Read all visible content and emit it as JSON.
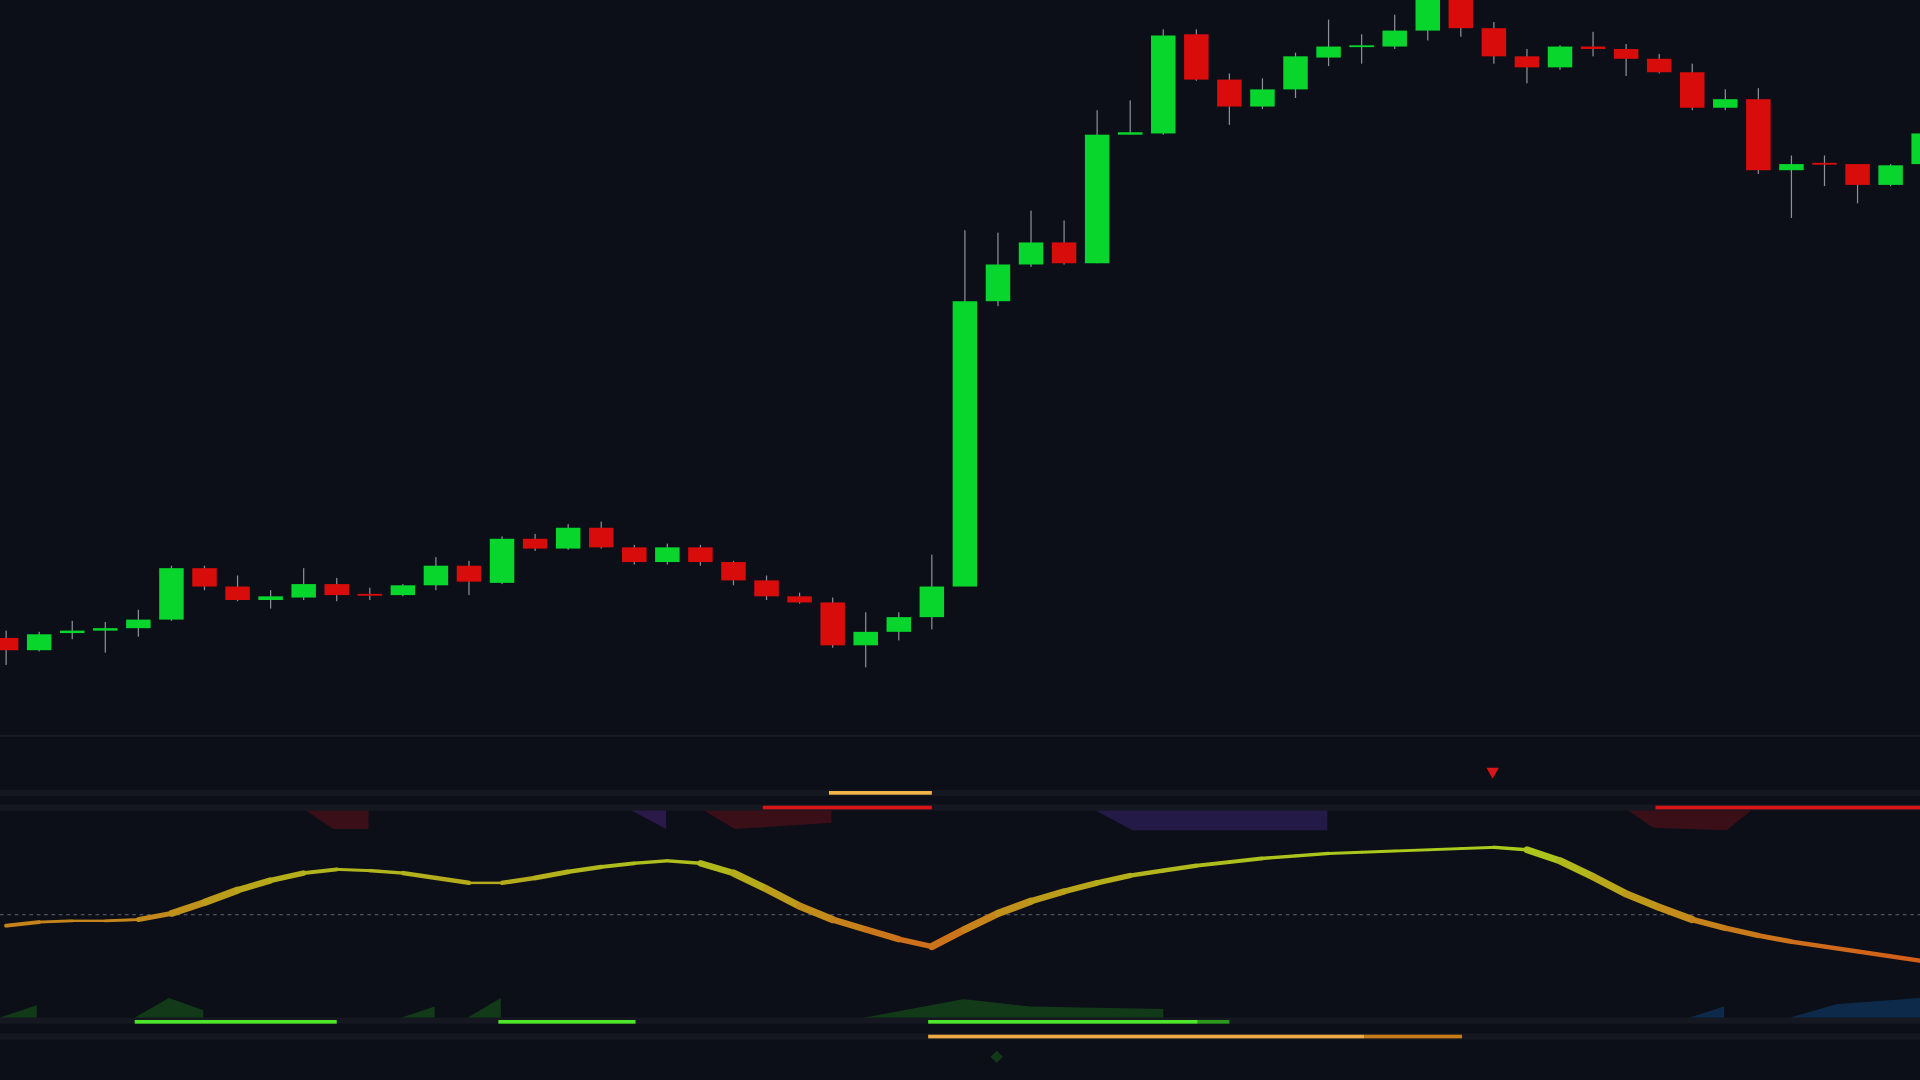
{
  "chart_data": [
    {
      "type": "candlestick",
      "up_color": "#08d62c",
      "down_color": "#d90c0c",
      "ylim": [
        0,
        600
      ],
      "open": [
        79,
        69,
        83,
        85,
        87,
        94,
        136,
        121,
        110,
        112,
        123,
        115,
        114,
        122,
        138,
        124,
        160,
        152,
        169,
        153,
        141,
        153,
        141,
        126,
        113,
        108,
        73,
        84,
        96,
        121,
        354,
        384,
        402,
        385,
        490,
        491,
        572,
        535,
        513,
        527,
        553,
        562,
        562,
        575,
        600,
        577,
        554,
        545,
        562,
        560,
        552,
        541,
        512,
        519,
        461,
        467,
        466,
        449,
        466
      ],
      "high": [
        85,
        84,
        93,
        92,
        102,
        138,
        138,
        130,
        118,
        136,
        128,
        120,
        123,
        145,
        142,
        162,
        164,
        172,
        174,
        155,
        156,
        155,
        142,
        130,
        116,
        112,
        100,
        100,
        147,
        412,
        410,
        428,
        420,
        510,
        518,
        576,
        576,
        540,
        536,
        557,
        584,
        572,
        588,
        600,
        600,
        582,
        560,
        563,
        574,
        564,
        556,
        548,
        527,
        528,
        473,
        473,
        466,
        466,
        495
      ],
      "low": [
        57,
        68,
        78,
        67,
        80,
        93,
        118,
        109,
        103,
        110,
        109,
        110,
        113,
        118,
        114,
        123,
        150,
        151,
        152,
        139,
        139,
        138,
        122,
        110,
        107,
        71,
        55,
        77,
        86,
        121,
        350,
        382,
        384,
        385,
        490,
        490,
        534,
        498,
        511,
        520,
        546,
        548,
        560,
        567,
        570,
        548,
        532,
        543,
        554,
        538,
        540,
        510,
        510,
        458,
        422,
        448,
        434,
        448,
        465
      ],
      "close": [
        69,
        82,
        85,
        87,
        94,
        136,
        121,
        110,
        113,
        123,
        114,
        114,
        122,
        138,
        125,
        160,
        152,
        169,
        153,
        141,
        153,
        141,
        126,
        113,
        108,
        73,
        84,
        96,
        121,
        354,
        384,
        402,
        385,
        490,
        492,
        571,
        535,
        513,
        527,
        554,
        562,
        563,
        575,
        600,
        577,
        554,
        545,
        562,
        560,
        552,
        541,
        512,
        519,
        461,
        466,
        466,
        449,
        465,
        491
      ]
    },
    {
      "type": "line",
      "up_color": "#a6d51c",
      "down_color": "#e0401a",
      "ylim": [
        -100,
        100
      ],
      "values": [
        -9,
        -6,
        -5,
        -5,
        -4,
        1,
        10,
        20,
        28,
        34,
        37,
        36,
        34,
        30,
        26,
        26,
        30,
        35,
        39,
        42,
        44,
        42,
        34,
        21,
        7,
        -4,
        -12,
        -20,
        -26,
        -12,
        1,
        11,
        19,
        26,
        32,
        36,
        40,
        43,
        46,
        48,
        50,
        51,
        52,
        53,
        54,
        55,
        53,
        44,
        31,
        17,
        6,
        -4,
        -11,
        -17,
        -22,
        -26,
        -30,
        -34,
        -38
      ]
    }
  ]
}
